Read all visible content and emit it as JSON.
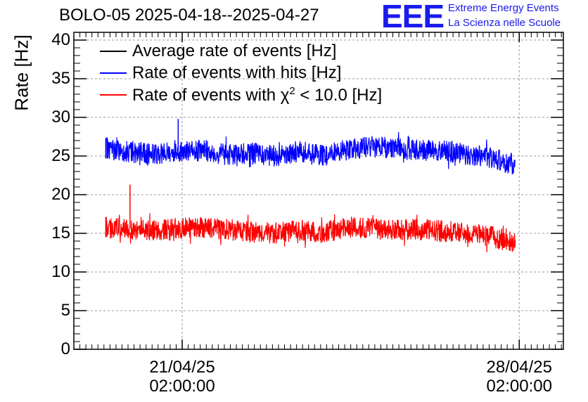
{
  "title": "BOLO-05 2025-04-18--2025-04-27",
  "logo": {
    "mark": "EEE",
    "line1": "Extreme Energy Events",
    "line2": "La Scienza nelle Scuole",
    "color": "#1a1aee"
  },
  "chart_data": {
    "type": "line",
    "ylabel": "Rate [Hz]",
    "xlabel": "",
    "ylim": [
      0,
      41
    ],
    "yticks": [
      0,
      5,
      10,
      15,
      20,
      25,
      30,
      35,
      40
    ],
    "xlim": [
      "2025-04-18 20:00:00",
      "2025-04-29 00:00:00"
    ],
    "xticks": [
      {
        "date": "2025-04-21 02:00:00",
        "line1": "21/04/25",
        "line2": "02:00:00"
      },
      {
        "date": "2025-04-28 02:00:00",
        "line1": "28/04/25",
        "line2": "02:00:00"
      }
    ],
    "grid": true,
    "legend_placement": "top-left",
    "series": [
      {
        "name": "Average rate of events [Hz]",
        "color": "#000000",
        "x": [],
        "values": []
      },
      {
        "name": "Rate of events with hits [Hz]",
        "color": "#0000ff",
        "x": [
          "2025-04-19 12:00",
          "2025-04-20 00:00",
          "2025-04-20 12:00",
          "2025-04-21 00:00",
          "2025-04-21 12:00",
          "2025-04-22 00:00",
          "2025-04-22 12:00",
          "2025-04-23 00:00",
          "2025-04-23 12:00",
          "2025-04-24 00:00",
          "2025-04-24 12:00",
          "2025-04-25 00:00",
          "2025-04-25 12:00",
          "2025-04-26 00:00",
          "2025-04-26 12:00",
          "2025-04-27 00:00",
          "2025-04-27 12:00",
          "2025-04-28 00:00"
        ],
        "values": [
          26.0,
          25.5,
          25.3,
          25.6,
          25.7,
          25.2,
          25.4,
          25.0,
          25.6,
          25.0,
          25.8,
          26.2,
          26.0,
          25.8,
          25.7,
          25.2,
          24.8,
          23.8
        ],
        "spike": {
          "x": "2025-04-21 00:00",
          "value": 29.8
        }
      },
      {
        "name": "Rate of events with χ² < 10.0 [Hz]",
        "name_parts": [
          "Rate of events with ",
          "χ",
          "2",
          " < 10.0 [Hz]"
        ],
        "color": "#ff0000",
        "x": [
          "2025-04-19 12:00",
          "2025-04-20 00:00",
          "2025-04-20 12:00",
          "2025-04-21 00:00",
          "2025-04-21 12:00",
          "2025-04-22 00:00",
          "2025-04-22 12:00",
          "2025-04-23 00:00",
          "2025-04-23 12:00",
          "2025-04-24 00:00",
          "2025-04-24 12:00",
          "2025-04-25 00:00",
          "2025-04-25 12:00",
          "2025-04-26 00:00",
          "2025-04-26 12:00",
          "2025-04-27 00:00",
          "2025-04-27 12:00",
          "2025-04-28 00:00"
        ],
        "values": [
          15.8,
          15.6,
          15.4,
          15.6,
          15.8,
          15.5,
          15.2,
          15.0,
          15.4,
          15.0,
          15.8,
          15.6,
          15.4,
          15.5,
          15.3,
          15.0,
          14.6,
          13.8
        ],
        "spike": {
          "x": "2025-04-20 00:00",
          "value": 21.3
        }
      }
    ]
  }
}
